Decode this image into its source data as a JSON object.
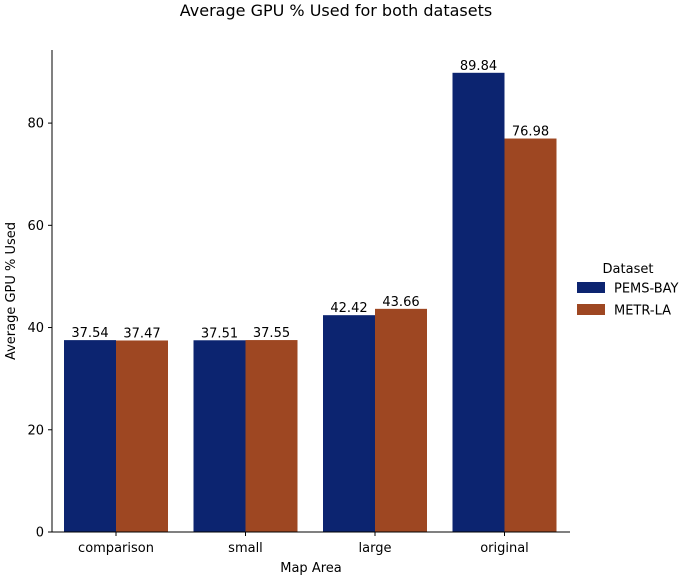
{
  "chart_data": {
    "type": "bar",
    "title": "Average GPU % Used for both datasets",
    "xlabel": "Map Area",
    "ylabel": "Average GPU % Used",
    "categories": [
      "comparison",
      "small",
      "large",
      "original"
    ],
    "series": [
      {
        "name": "PEMS-BAY",
        "color": "#0c2470",
        "values": [
          37.54,
          37.51,
          42.42,
          89.84
        ]
      },
      {
        "name": "METR-LA",
        "color": "#9e4722",
        "values": [
          37.47,
          37.55,
          43.66,
          76.98
        ]
      }
    ],
    "value_labels": [
      [
        "37.54",
        "37.51",
        "42.42",
        "89.84"
      ],
      [
        "37.47",
        "37.55",
        "43.66",
        "76.98"
      ]
    ],
    "ylim": [
      0,
      94.3
    ],
    "yticks": [
      0,
      20,
      40,
      60,
      80
    ],
    "ytick_labels": [
      "0",
      "20",
      "40",
      "60",
      "80"
    ],
    "legend": {
      "title": "Dataset",
      "placement": "right"
    },
    "grid": false
  }
}
